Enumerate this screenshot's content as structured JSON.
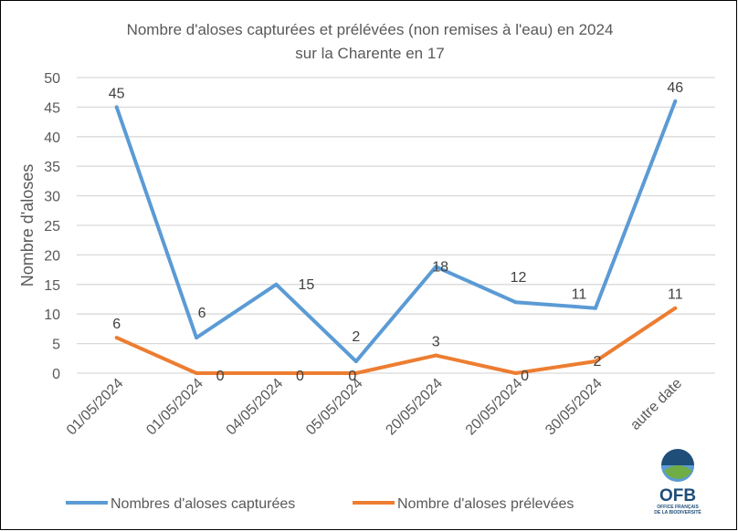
{
  "chart_data": {
    "type": "line",
    "title_line1": "Nombre d'aloses capturées et prélévées (non remises à l'eau) en 2024",
    "title_line2": "sur la Charente en 17",
    "ylabel": "Nombre d'aloses",
    "xlabel": "",
    "ylim": [
      0,
      50
    ],
    "yticks": [
      0,
      5,
      10,
      15,
      20,
      25,
      30,
      35,
      40,
      45,
      50
    ],
    "grid": true,
    "legend_position": "bottom",
    "categories": [
      "01/05/2024",
      "01/05/2024",
      "04/05/2024",
      "05/05/2024",
      "20/05/2024",
      "20/05/2024",
      "30/05/2024",
      "autre date"
    ],
    "series": [
      {
        "name": "Nombres d'aloses capturées",
        "color": "#5b9bd5",
        "values": [
          45,
          6,
          15,
          2,
          18,
          12,
          11,
          46
        ]
      },
      {
        "name": "Nombre d'aloses prélevées",
        "color": "#ed7d31",
        "values": [
          6,
          0,
          0,
          0,
          3,
          0,
          2,
          11
        ]
      }
    ]
  },
  "logo": {
    "text": "OFB",
    "subtitle_line1": "OFFICE FRANÇAIS",
    "subtitle_line2": "DE LA BIODIVERSITÉ"
  }
}
